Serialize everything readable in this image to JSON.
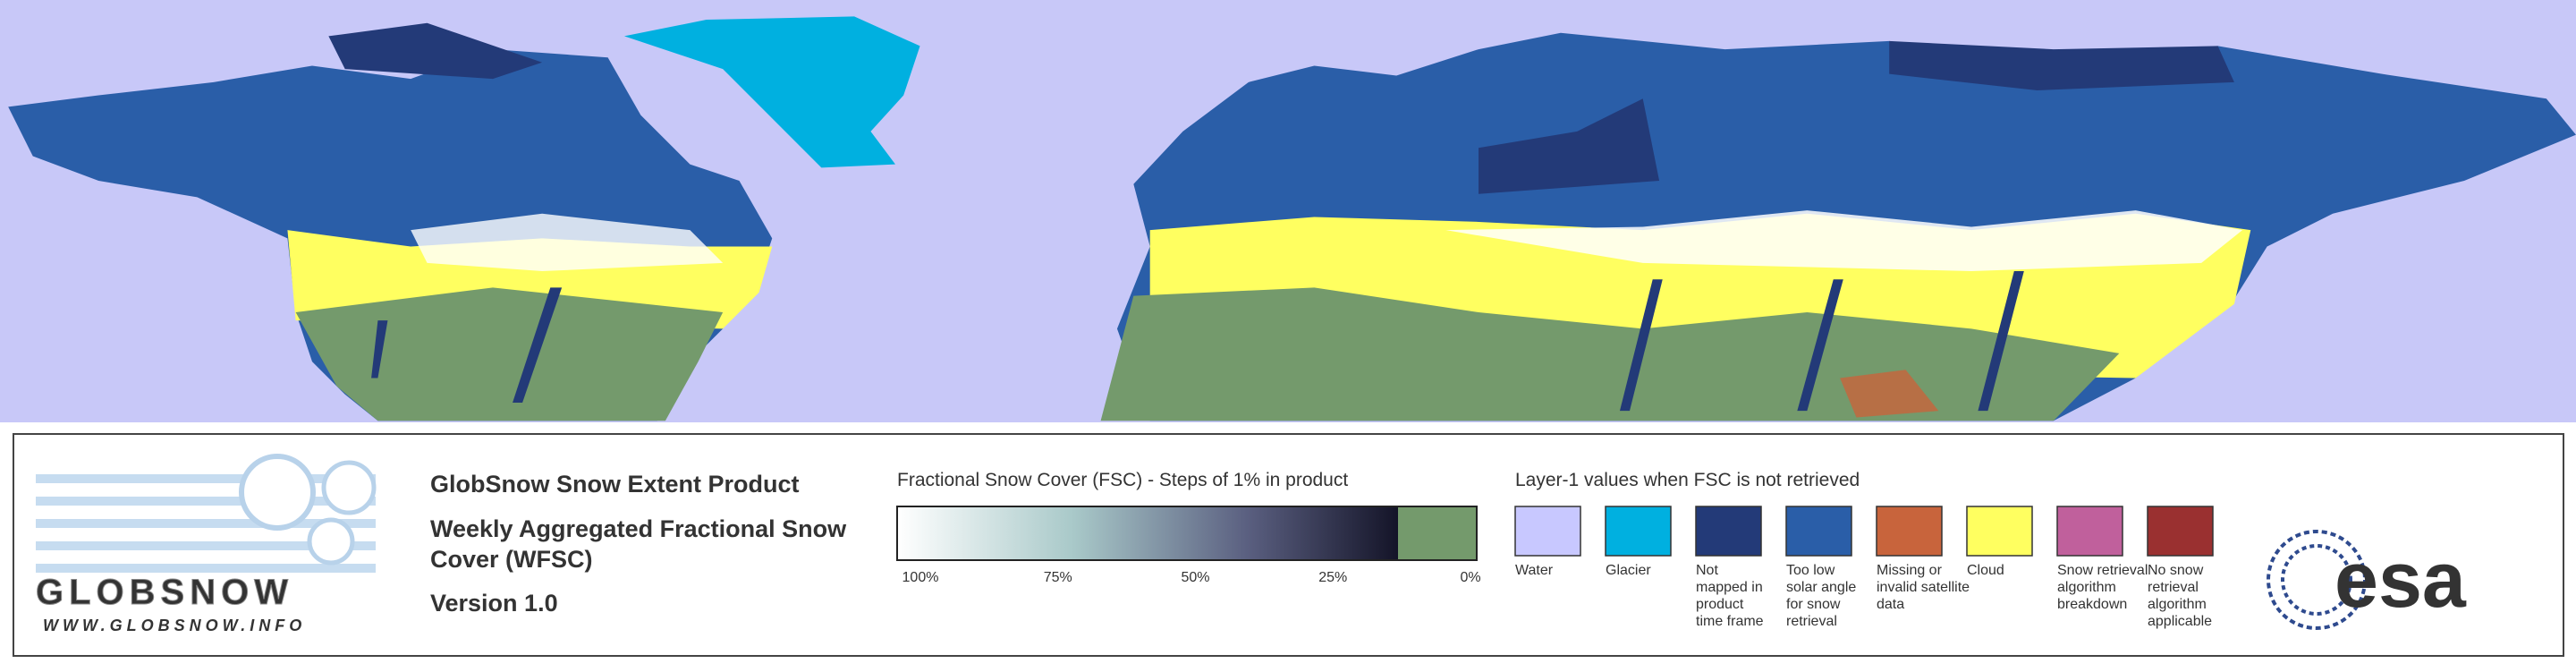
{
  "product": {
    "title": "GlobSnow Snow Extent Product",
    "subtitle_lines": [
      "Weekly Aggregated Fractional Snow",
      "Cover (WFSC)"
    ],
    "version": "Version 1.0"
  },
  "logo": {
    "name": "GLOBSNOW",
    "url": "WWW.GLOBSNOW.INFO",
    "agency": "esa"
  },
  "fsc_scale": {
    "title": "Fractional Snow Cover (FSC) - Steps of 1% in product",
    "labels": [
      "100%",
      "75%",
      "50%",
      "25%",
      "0%"
    ]
  },
  "layer1": {
    "title": "Layer-1 values when FSC is not retrieved",
    "items": [
      {
        "color": "#c8c8ff",
        "label": [
          "Water"
        ]
      },
      {
        "color": "#00b0e0",
        "label": [
          "Glacier"
        ]
      },
      {
        "color": "#233a78",
        "label": [
          "Not",
          "mapped in",
          "product",
          "time frame"
        ]
      },
      {
        "color": "#2a5ea8",
        "label": [
          "Too low",
          "solar angle",
          "for snow",
          "retrieval"
        ]
      },
      {
        "color": "#c8643c",
        "label": [
          "Missing or",
          "invalid satellite",
          "data"
        ]
      },
      {
        "color": "#ffff60",
        "label": [
          "Cloud"
        ]
      },
      {
        "color": "#c0609c",
        "label": [
          "Snow retrieval",
          "algorithm",
          "breakdown"
        ]
      },
      {
        "color": "#9a3030",
        "label": [
          "No snow",
          "retrieval",
          "algorithm",
          "applicable"
        ]
      }
    ]
  }
}
